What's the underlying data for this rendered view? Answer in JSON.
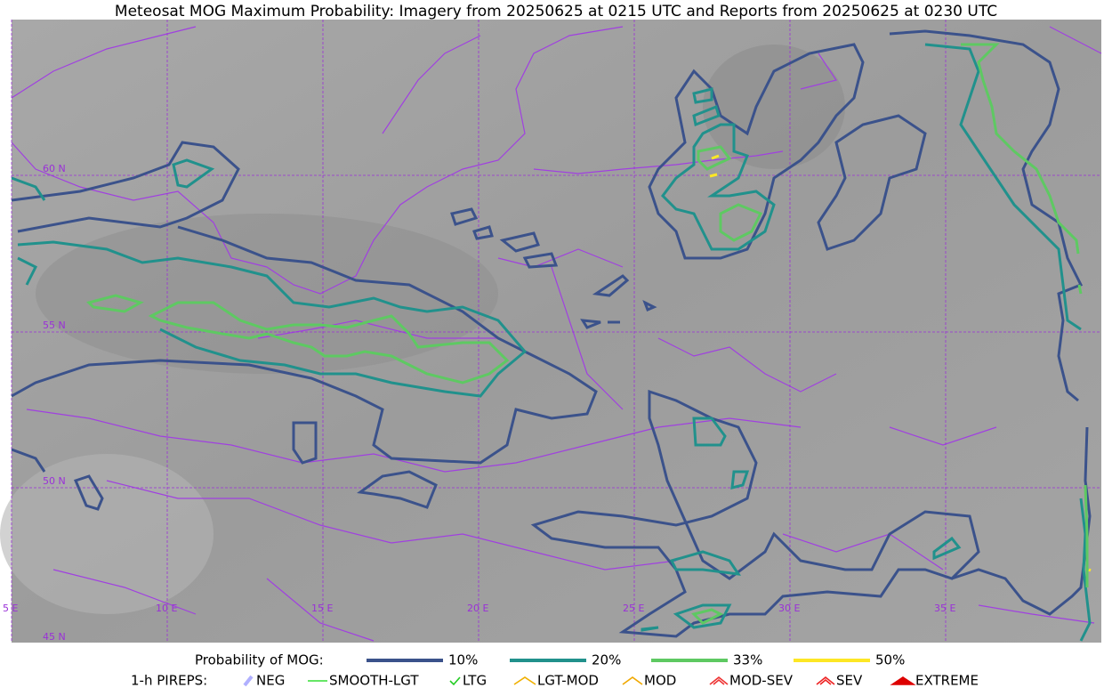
{
  "title": "Meteosat MOG Maximum Probability: Imagery from 20250625 at 0215 UTC and Reports from 20250625 at 0230 UTC",
  "map": {
    "lat_labels": [
      "60 N",
      "55 N",
      "50 N",
      "45 N"
    ],
    "lon_labels": [
      "5 E",
      "10 E",
      "15 E",
      "20 E",
      "25 E",
      "30 E",
      "35 E"
    ]
  },
  "legend": {
    "probability": {
      "label": "Probability of MOG:",
      "items": [
        {
          "label": "10%",
          "color": "#3b528b"
        },
        {
          "label": "20%",
          "color": "#21918c"
        },
        {
          "label": "33%",
          "color": "#5ec962"
        },
        {
          "label": "50%",
          "color": "#fde725"
        }
      ]
    },
    "pireps": {
      "label": "1-h PIREPS:",
      "items": [
        {
          "label": "NEG",
          "color": "#b0b0ff"
        },
        {
          "label": "SMOOTH-LGT",
          "color": "#33dd33"
        },
        {
          "label": "LTG",
          "color": "#22cc22"
        },
        {
          "label": "LGT-MOD",
          "color": "#f0b000"
        },
        {
          "label": "MOD",
          "color": "#f0a800"
        },
        {
          "label": "MOD-SEV",
          "color": "#ee3333"
        },
        {
          "label": "SEV",
          "color": "#ee2222"
        },
        {
          "label": "EXTREME",
          "color": "#dd0000"
        }
      ]
    }
  }
}
